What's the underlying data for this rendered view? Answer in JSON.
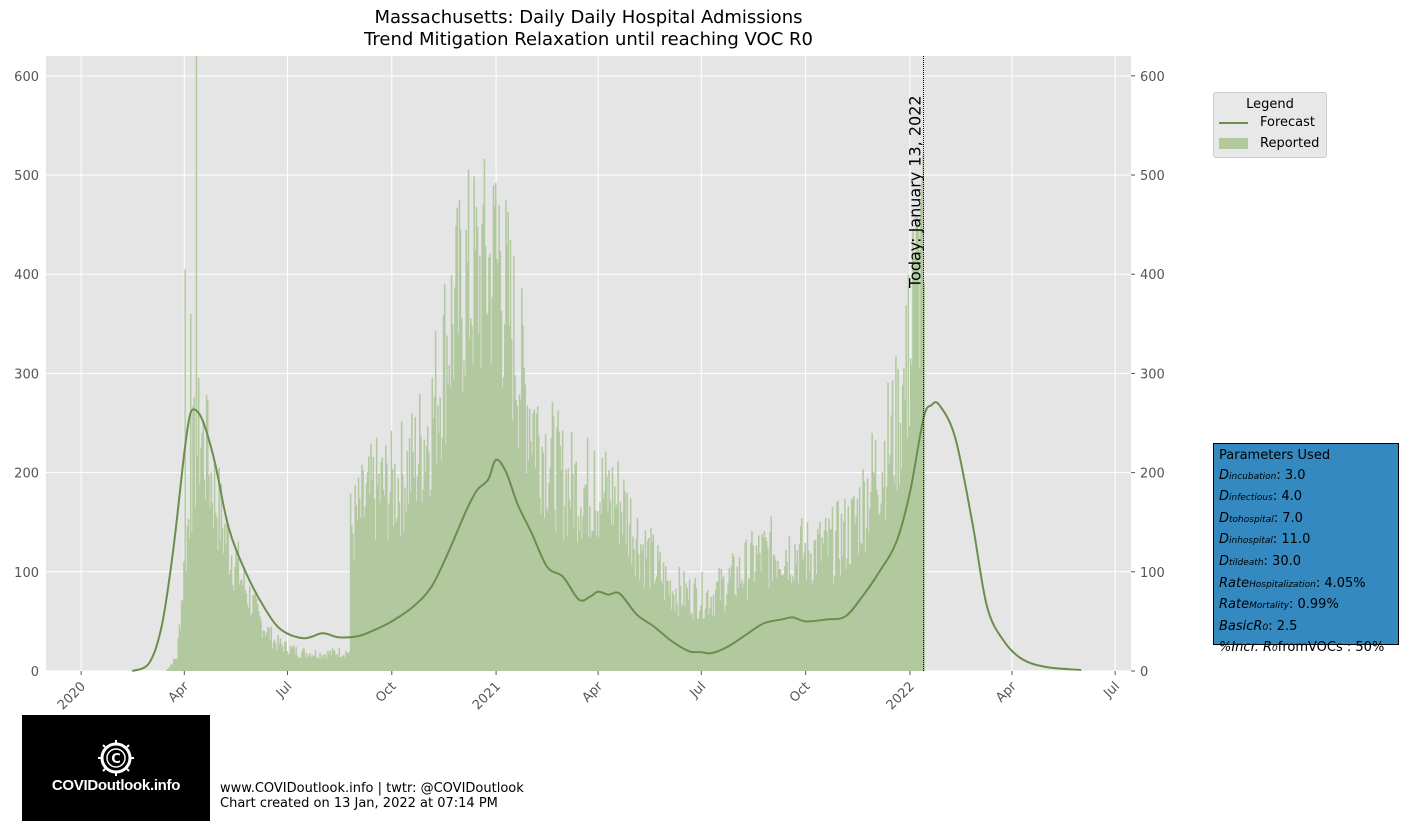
{
  "title_line1": "Massachusetts: Daily Daily Hospital Admissions",
  "title_line2": "Trend Mitigation Relaxation until reaching VOC R0",
  "today_label": "Today: January 13, 2022",
  "legend": {
    "title": "Legend",
    "forecast_label": "Forecast",
    "reported_label": "Reported"
  },
  "parameters": {
    "title": "Parameters Used",
    "items": [
      {
        "name": "D",
        "sub": "incubation",
        "value": ": 3.0"
      },
      {
        "name": "D",
        "sub": "infectious",
        "value": ": 4.0"
      },
      {
        "name": "D",
        "sub": "tohospital",
        "value": ": 7.0"
      },
      {
        "name": "D",
        "sub": "inhospital",
        "value": ": 11.0"
      },
      {
        "name": "D",
        "sub": "tildeath",
        "value": ": 30.0"
      },
      {
        "name": "Rate",
        "sub": "Hospitalization",
        "value": ": 4.05%"
      },
      {
        "name": "Rate",
        "sub": "Mortality",
        "value": ": 0.99%"
      },
      {
        "name": "BasicR",
        "sub": "0",
        "value": ": 2.5"
      },
      {
        "name": "%Incr. R",
        "sub": "0",
        "value": "fromVOCs : 50%"
      }
    ]
  },
  "logo_text": "COVIDoutlook.info",
  "footer_line1": "www.COVIDoutlook.info | twtr: @COVIDoutlook",
  "footer_line2": "Chart created on 13 Jan, 2022 at 07:14 PM",
  "colors": {
    "forecast": "#6b8e4e",
    "reported": "#b2c9a0",
    "plot_bg": "#e5e5e5",
    "params_bg": "#3389c0"
  },
  "chart_data": {
    "type": "bar",
    "title": "Massachusetts: Daily Daily Hospital Admissions\nTrend Mitigation Relaxation until reaching VOC R0",
    "xlim": [
      "2019-12-01",
      "2022-07-15"
    ],
    "ylim": [
      0,
      620
    ],
    "yticks": [
      0,
      100,
      200,
      300,
      400,
      500,
      600
    ],
    "xticks": [
      {
        "date": "2020-01-01",
        "label": "2020"
      },
      {
        "date": "2020-04-01",
        "label": "Apr"
      },
      {
        "date": "2020-07-01",
        "label": "Jul"
      },
      {
        "date": "2020-10-01",
        "label": "Oct"
      },
      {
        "date": "2021-01-01",
        "label": "2021"
      },
      {
        "date": "2021-04-01",
        "label": "Apr"
      },
      {
        "date": "2021-07-01",
        "label": "Jul"
      },
      {
        "date": "2021-10-01",
        "label": "Oct"
      },
      {
        "date": "2022-01-01",
        "label": "2022"
      },
      {
        "date": "2022-04-01",
        "label": "Apr"
      },
      {
        "date": "2022-07-01",
        "label": "Jul"
      }
    ],
    "grid": true,
    "legend_position": "outside-top-right",
    "today": "2022-01-13",
    "series": [
      {
        "name": "Reported",
        "kind": "bar",
        "anchors": [
          [
            "2020-03-15",
            0
          ],
          [
            "2020-03-25",
            15
          ],
          [
            "2020-04-01",
            120
          ],
          [
            "2020-04-08",
            220
          ],
          [
            "2020-04-15",
            250
          ],
          [
            "2020-04-25",
            200
          ],
          [
            "2020-05-05",
            150
          ],
          [
            "2020-05-20",
            100
          ],
          [
            "2020-06-05",
            55
          ],
          [
            "2020-06-20",
            30
          ],
          [
            "2020-07-10",
            20
          ],
          [
            "2020-08-01",
            18
          ],
          [
            "2020-08-15",
            20
          ],
          [
            "2020-08-24",
            20
          ],
          [
            "2020-08-25",
            150
          ],
          [
            "2020-09-15",
            190
          ],
          [
            "2020-10-01",
            195
          ],
          [
            "2020-10-20",
            220
          ],
          [
            "2020-11-05",
            270
          ],
          [
            "2020-11-20",
            360
          ],
          [
            "2020-12-05",
            410
          ],
          [
            "2020-12-20",
            420
          ],
          [
            "2021-01-01",
            430
          ],
          [
            "2021-01-10",
            390
          ],
          [
            "2021-01-25",
            300
          ],
          [
            "2021-02-10",
            240
          ],
          [
            "2021-03-01",
            200
          ],
          [
            "2021-04-01",
            190
          ],
          [
            "2021-04-20",
            180
          ],
          [
            "2021-05-10",
            130
          ],
          [
            "2021-06-01",
            90
          ],
          [
            "2021-06-20",
            80
          ],
          [
            "2021-07-10",
            80
          ],
          [
            "2021-08-01",
            100
          ],
          [
            "2021-08-20",
            120
          ],
          [
            "2021-09-10",
            130
          ],
          [
            "2021-10-01",
            125
          ],
          [
            "2021-10-20",
            130
          ],
          [
            "2021-11-10",
            150
          ],
          [
            "2021-12-01",
            210
          ],
          [
            "2021-12-20",
            260
          ],
          [
            "2022-01-01",
            330
          ],
          [
            "2022-01-13",
            480
          ]
        ],
        "spikes": [
          [
            "2020-04-01",
            405
          ],
          [
            "2020-04-06",
            360
          ],
          [
            "2020-04-11",
            620
          ],
          [
            "2020-04-20",
            278
          ],
          [
            "2020-12-31",
            492
          ],
          [
            "2020-12-20",
            470
          ],
          [
            "2021-01-03",
            470
          ],
          [
            "2021-03-28",
            222
          ],
          [
            "2021-12-30",
            400
          ],
          [
            "2022-01-03",
            445
          ],
          [
            "2022-01-06",
            460
          ],
          [
            "2022-01-10",
            470
          ],
          [
            "2022-01-12",
            520
          ]
        ]
      },
      {
        "name": "Forecast",
        "kind": "line",
        "points": [
          [
            "2020-02-15",
            0
          ],
          [
            "2020-03-01",
            8
          ],
          [
            "2020-03-12",
            45
          ],
          [
            "2020-03-22",
            120
          ],
          [
            "2020-04-01",
            220
          ],
          [
            "2020-04-06",
            258
          ],
          [
            "2020-04-11",
            263
          ],
          [
            "2020-04-18",
            250
          ],
          [
            "2020-04-28",
            210
          ],
          [
            "2020-05-10",
            145
          ],
          [
            "2020-05-25",
            100
          ],
          [
            "2020-06-10",
            65
          ],
          [
            "2020-06-25",
            42
          ],
          [
            "2020-07-15",
            33
          ],
          [
            "2020-08-01",
            38
          ],
          [
            "2020-08-15",
            34
          ],
          [
            "2020-09-01",
            35
          ],
          [
            "2020-09-15",
            41
          ],
          [
            "2020-10-01",
            50
          ],
          [
            "2020-10-20",
            65
          ],
          [
            "2020-11-05",
            85
          ],
          [
            "2020-11-20",
            120
          ],
          [
            "2020-12-05",
            160
          ],
          [
            "2020-12-15",
            182
          ],
          [
            "2020-12-25",
            193
          ],
          [
            "2021-01-01",
            213
          ],
          [
            "2021-01-10",
            200
          ],
          [
            "2021-01-20",
            168
          ],
          [
            "2021-02-01",
            140
          ],
          [
            "2021-02-15",
            105
          ],
          [
            "2021-03-01",
            95
          ],
          [
            "2021-03-15",
            72
          ],
          [
            "2021-03-25",
            75
          ],
          [
            "2021-04-01",
            80
          ],
          [
            "2021-04-10",
            77
          ],
          [
            "2021-04-20",
            78
          ],
          [
            "2021-05-05",
            57
          ],
          [
            "2021-05-20",
            45
          ],
          [
            "2021-06-05",
            30
          ],
          [
            "2021-06-20",
            20
          ],
          [
            "2021-07-01",
            19
          ],
          [
            "2021-07-10",
            18
          ],
          [
            "2021-07-25",
            25
          ],
          [
            "2021-08-10",
            37
          ],
          [
            "2021-08-25",
            48
          ],
          [
            "2021-09-10",
            52
          ],
          [
            "2021-09-20",
            54
          ],
          [
            "2021-10-01",
            50
          ],
          [
            "2021-10-20",
            52
          ],
          [
            "2021-11-05",
            55
          ],
          [
            "2021-11-20",
            75
          ],
          [
            "2021-12-05",
            100
          ],
          [
            "2021-12-20",
            130
          ],
          [
            "2022-01-01",
            180
          ],
          [
            "2022-01-13",
            255
          ],
          [
            "2022-01-20",
            268
          ],
          [
            "2022-01-27",
            268
          ],
          [
            "2022-02-10",
            235
          ],
          [
            "2022-02-25",
            150
          ],
          [
            "2022-03-10",
            65
          ],
          [
            "2022-03-25",
            30
          ],
          [
            "2022-04-10",
            12
          ],
          [
            "2022-05-01",
            4
          ],
          [
            "2022-06-01",
            1
          ]
        ]
      }
    ]
  }
}
